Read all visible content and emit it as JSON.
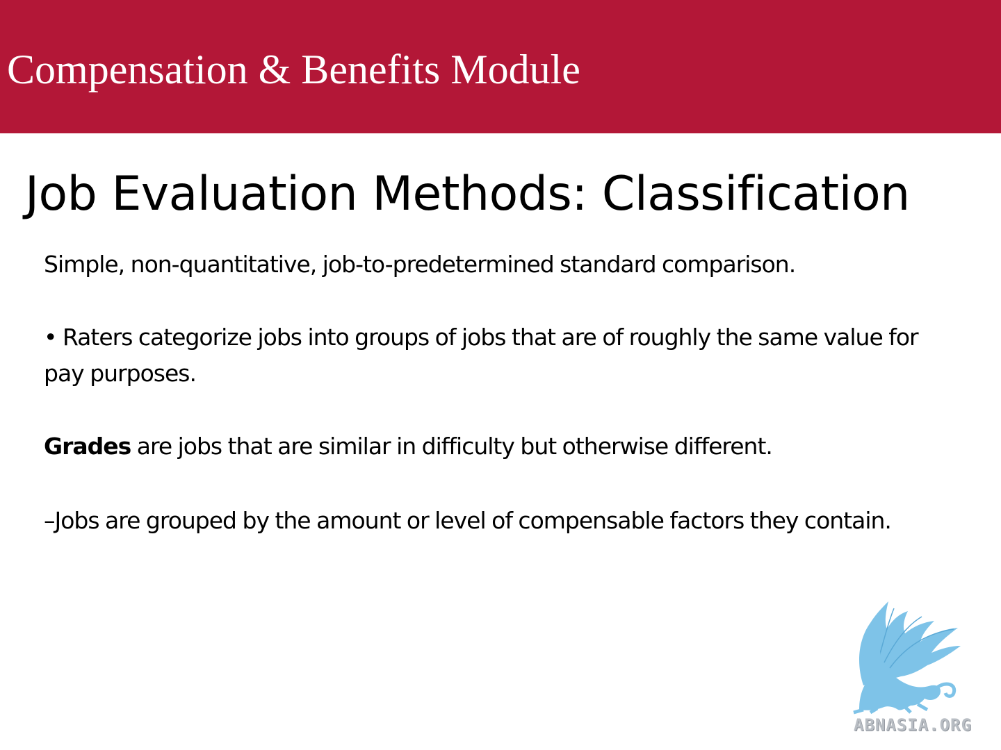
{
  "header": {
    "module_title": "Compensation & Benefits Module",
    "background_color": "#b31737"
  },
  "slide": {
    "title": "Job Evaluation Methods: Classification",
    "paragraph_1": "Simple, non-quantitative, job-to-predetermined standard comparison.",
    "paragraph_2": "• Raters categorize jobs into groups of jobs that are of roughly the same value for pay purposes.",
    "paragraph_3_bold": "Grades",
    "paragraph_3_rest": " are jobs that are similar in difficulty but otherwise different.",
    "paragraph_4": "–Jobs are grouped by the amount or level of compensable factors they contain."
  },
  "logo": {
    "icon": "griffin-logo-icon",
    "text": "ABNASIA.ORG",
    "color": "#7ec3e8"
  }
}
